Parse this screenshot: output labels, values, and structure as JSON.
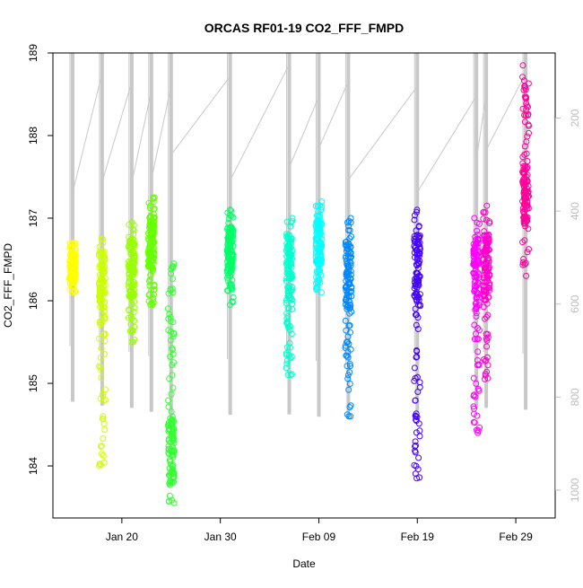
{
  "chart_data": {
    "type": "scatter",
    "title": "ORCAS RF01-19 CO2_FFF_FMPD",
    "xlabel": "Date",
    "ylabel": "CO2_FFF_FMPD",
    "xlim": [
      "2016-01-13",
      "2016-03-04"
    ],
    "ylim": [
      183.37,
      189.0
    ],
    "x_ticks": [
      {
        "date": "2016-01-20",
        "label": "Jan 20"
      },
      {
        "date": "2016-01-30",
        "label": "Jan 30"
      },
      {
        "date": "2016-02-09",
        "label": "Feb 09"
      },
      {
        "date": "2016-02-19",
        "label": "Feb 19"
      },
      {
        "date": "2016-02-29",
        "label": "Feb 29"
      }
    ],
    "y_ticks": [
      184,
      185,
      186,
      187,
      188,
      189
    ],
    "y2_axis": {
      "label": "",
      "range": [
        60,
        1060
      ],
      "ticks": [
        200,
        400,
        600,
        800,
        1000
      ],
      "color": "#bdbdbd"
    },
    "series": [
      {
        "date": "2016-01-15",
        "color": "#ffff00",
        "min": 186.1,
        "max": 186.7,
        "mean": 186.4
      },
      {
        "date": "2016-01-18",
        "color": "#ccff00",
        "min": 184.0,
        "max": 186.75,
        "mean": 186.3
      },
      {
        "date": "2016-01-21",
        "color": "#99ff00",
        "min": 185.5,
        "max": 186.95,
        "mean": 186.4
      },
      {
        "date": "2016-01-23",
        "color": "#66ff00",
        "min": 185.95,
        "max": 187.25,
        "mean": 186.7
      },
      {
        "date": "2016-01-25",
        "color": "#33ff33",
        "min": 183.55,
        "max": 186.45,
        "mean": 184.2
      },
      {
        "date": "2016-01-31",
        "color": "#00ff66",
        "min": 185.95,
        "max": 187.1,
        "mean": 186.6
      },
      {
        "date": "2016-02-06",
        "color": "#00ffcc",
        "min": 185.1,
        "max": 187.0,
        "mean": 186.4
      },
      {
        "date": "2016-02-09",
        "color": "#00ffff",
        "min": 186.1,
        "max": 187.2,
        "mean": 186.7
      },
      {
        "date": "2016-02-12",
        "color": "#0088ff",
        "min": 184.6,
        "max": 187.0,
        "mean": 186.3
      },
      {
        "date": "2016-02-19",
        "color": "#4400ff",
        "min": 183.85,
        "max": 187.1,
        "mean": 186.4
      },
      {
        "date": "2016-02-25",
        "color": "#ff00ff",
        "min": 184.4,
        "max": 187.0,
        "mean": 186.4
      },
      {
        "date": "2016-02-26",
        "color": "#ff00cc",
        "min": 185.05,
        "max": 187.15,
        "mean": 186.4
      },
      {
        "date": "2016-03-01",
        "color": "#ff0099",
        "min": 186.3,
        "max": 188.85,
        "mean": 187.3
      }
    ],
    "altitude_profile_color": "#c8c8c8",
    "grid": false,
    "legend": "none"
  }
}
